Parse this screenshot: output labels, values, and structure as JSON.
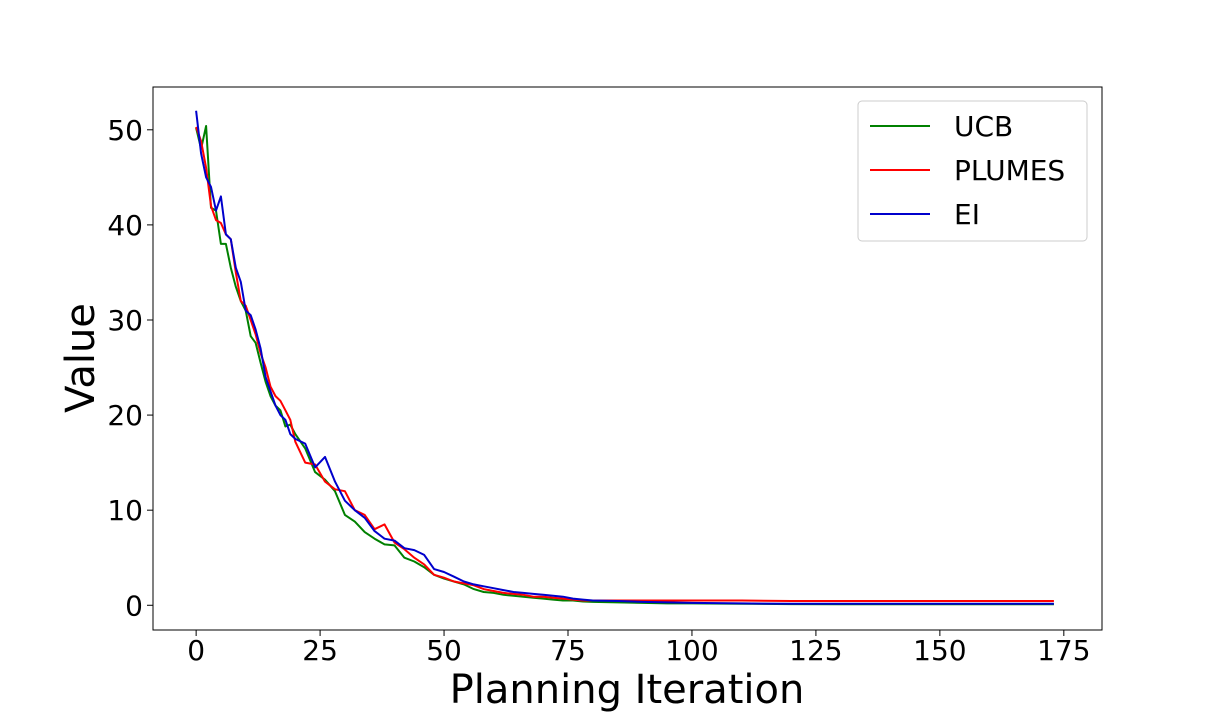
{
  "chart_data": {
    "type": "line",
    "xlabel": "Planning Iteration",
    "ylabel": "Value",
    "xlim": [
      -8.7,
      182.7
    ],
    "ylim": [
      -2.6,
      54.5
    ],
    "xticks": [
      0,
      25,
      50,
      75,
      100,
      125,
      150,
      175
    ],
    "yticks": [
      0,
      10,
      20,
      30,
      40,
      50
    ],
    "grid": false,
    "legend_position": "top-right",
    "x": [
      0,
      1,
      2,
      3,
      4,
      5,
      6,
      7,
      8,
      9,
      10,
      11,
      12,
      13,
      14,
      15,
      16,
      17,
      18,
      19,
      20,
      22,
      24,
      26,
      28,
      30,
      32,
      34,
      36,
      38,
      40,
      42,
      44,
      46,
      48,
      50,
      52,
      54,
      56,
      58,
      60,
      62,
      64,
      66,
      68,
      70,
      72,
      74,
      76,
      78,
      80,
      85,
      90,
      95,
      100,
      110,
      120,
      130,
      140,
      150,
      160,
      170,
      173
    ],
    "series": [
      {
        "name": "UCB",
        "color": "#008000",
        "values": [
          50.2,
          48.0,
          50.4,
          41.8,
          41.5,
          38.0,
          38.0,
          35.5,
          33.5,
          32.0,
          31.0,
          28.3,
          27.6,
          25.5,
          23.5,
          22.0,
          21.0,
          20.5,
          18.8,
          19.0,
          18.0,
          16.5,
          14.0,
          13.2,
          12.0,
          9.5,
          8.8,
          7.7,
          7.0,
          6.4,
          6.3,
          5.0,
          4.6,
          4.0,
          3.2,
          2.8,
          2.5,
          2.2,
          1.7,
          1.4,
          1.3,
          1.1,
          1.0,
          0.9,
          0.8,
          0.7,
          0.6,
          0.5,
          0.5,
          0.4,
          0.35,
          0.3,
          0.25,
          0.2,
          0.2,
          0.15,
          0.12,
          0.1,
          0.1,
          0.1,
          0.1,
          0.1,
          0.1
        ]
      },
      {
        "name": "PLUMES",
        "color": "#ff0000",
        "values": [
          50.3,
          48.8,
          46.0,
          42.0,
          40.5,
          40.2,
          39.0,
          38.5,
          35.0,
          32.0,
          31.5,
          30.0,
          28.5,
          26.5,
          25.0,
          23.0,
          22.0,
          21.5,
          20.5,
          19.5,
          17.2,
          15.0,
          14.8,
          13.0,
          12.2,
          12.0,
          10.0,
          9.5,
          8.0,
          8.5,
          6.6,
          5.9,
          5.0,
          4.3,
          3.2,
          2.9,
          2.5,
          2.3,
          2.1,
          1.7,
          1.5,
          1.3,
          1.2,
          1.1,
          0.9,
          0.9,
          0.8,
          0.7,
          0.6,
          0.5,
          0.5,
          0.5,
          0.5,
          0.5,
          0.5,
          0.5,
          0.45,
          0.45,
          0.45,
          0.45,
          0.45,
          0.45,
          0.45
        ]
      },
      {
        "name": "EI",
        "color": "#0000cc",
        "values": [
          52.0,
          47.5,
          45.0,
          44.0,
          41.5,
          43.0,
          39.0,
          38.5,
          35.5,
          34.0,
          31.0,
          30.5,
          29.0,
          27.0,
          24.0,
          22.5,
          21.0,
          20.0,
          19.5,
          18.0,
          17.5,
          17.0,
          14.5,
          15.6,
          13.0,
          11.0,
          10.0,
          9.2,
          7.8,
          7.0,
          6.8,
          6.0,
          5.8,
          5.3,
          3.8,
          3.5,
          3.0,
          2.5,
          2.2,
          2.0,
          1.8,
          1.6,
          1.4,
          1.3,
          1.2,
          1.1,
          1.0,
          0.9,
          0.7,
          0.6,
          0.5,
          0.45,
          0.35,
          0.3,
          0.25,
          0.2,
          0.15,
          0.15,
          0.15,
          0.15,
          0.15,
          0.15,
          0.15
        ]
      }
    ]
  }
}
